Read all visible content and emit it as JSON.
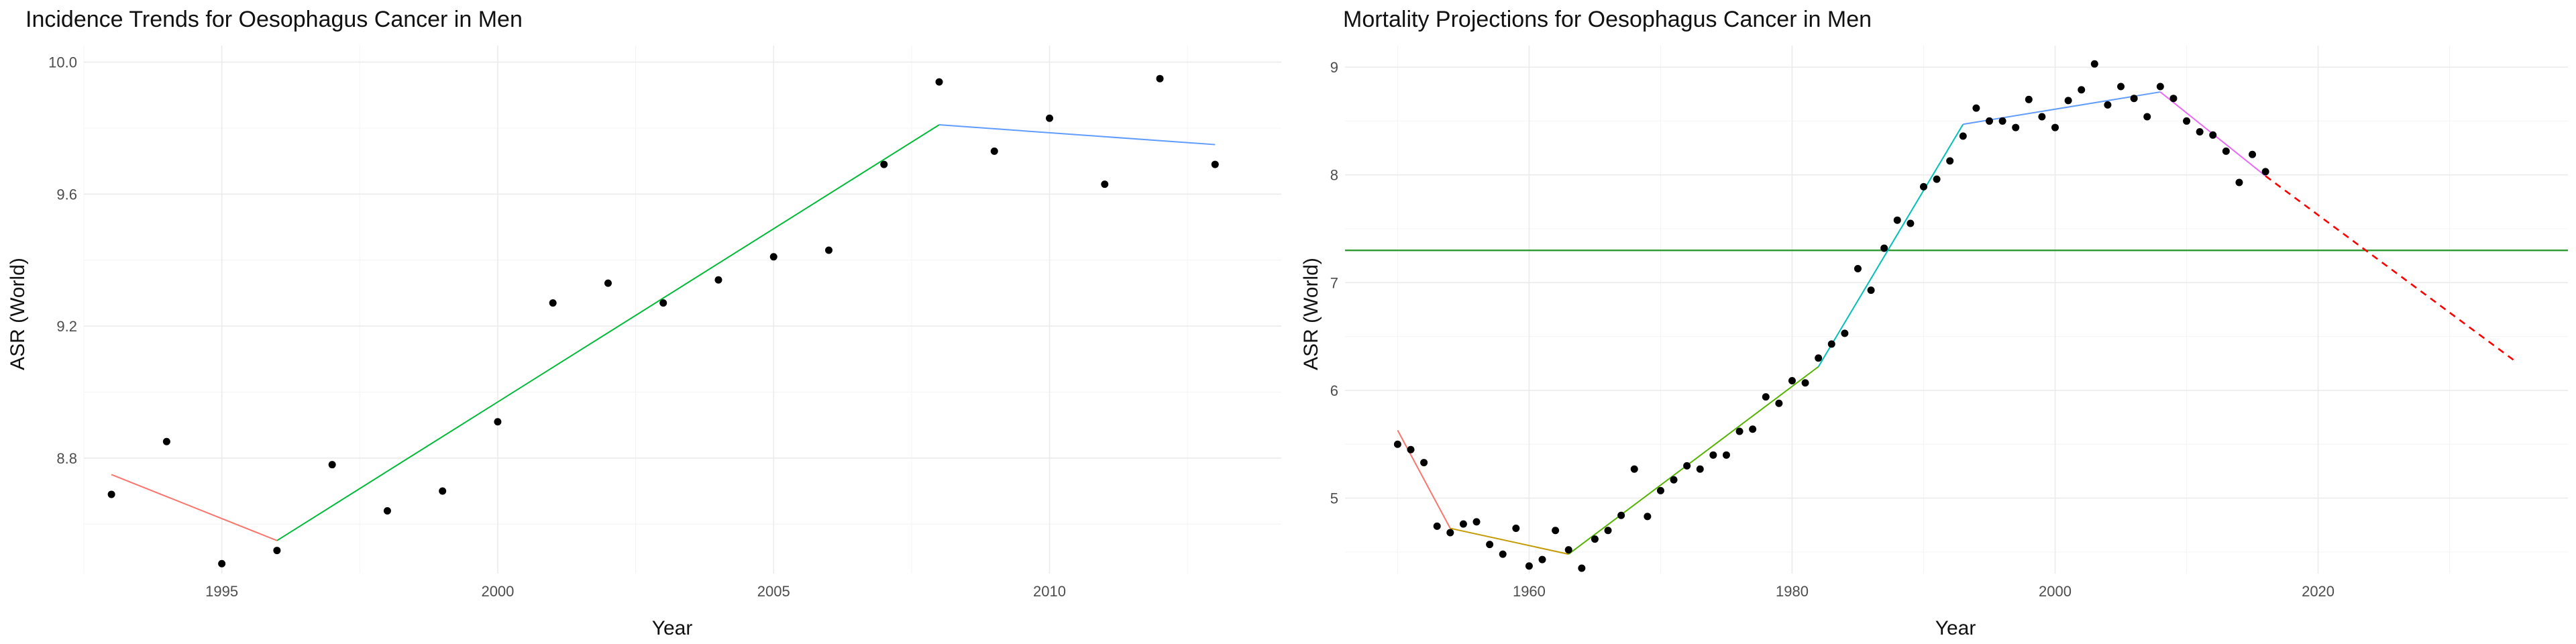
{
  "chart_data": [
    {
      "type": "scatter",
      "title": "Incidence Trends for Oesophagus Cancer in Men",
      "xlabel": "Year",
      "ylabel": "ASR (World)",
      "xlim": [
        1992.5,
        2014.2
      ],
      "ylim": [
        8.45,
        10.05
      ],
      "x_ticks": [
        1995,
        2000,
        2005,
        2010
      ],
      "y_ticks": [
        8.8,
        9.2,
        9.6,
        10.0
      ],
      "y_tick_labels": [
        "8.8",
        "9.2",
        "9.6",
        "10.0"
      ],
      "grid": true,
      "points": [
        [
          1993,
          8.69
        ],
        [
          1994,
          8.85
        ],
        [
          1995,
          8.48
        ],
        [
          1996,
          8.52
        ],
        [
          1997,
          8.78
        ],
        [
          1998,
          8.64
        ],
        [
          1999,
          8.7
        ],
        [
          2000,
          8.91
        ],
        [
          2001,
          9.27
        ],
        [
          2002,
          9.33
        ],
        [
          2003,
          9.27
        ],
        [
          2004,
          9.34
        ],
        [
          2005,
          9.41
        ],
        [
          2006,
          9.43
        ],
        [
          2007,
          9.69
        ],
        [
          2008,
          9.94
        ],
        [
          2009,
          9.73
        ],
        [
          2010,
          9.83
        ],
        [
          2011,
          9.63
        ],
        [
          2012,
          9.95
        ],
        [
          2013,
          9.69
        ]
      ],
      "trend_segments": [
        {
          "color": "#F8766D",
          "points": [
            [
              1993,
              8.75
            ],
            [
              1996,
              8.55
            ]
          ]
        },
        {
          "color": "#00BA38",
          "points": [
            [
              1996,
              8.55
            ],
            [
              2008,
              9.81
            ]
          ]
        },
        {
          "color": "#619CFF",
          "points": [
            [
              2008,
              9.81
            ],
            [
              2013,
              9.75
            ]
          ]
        }
      ]
    },
    {
      "type": "scatter",
      "title": "Mortality Projections for Oesophagus Cancer in Men",
      "xlabel": "Year",
      "ylabel": "ASR (World)",
      "xlim": [
        1946,
        2039
      ],
      "ylim": [
        4.3,
        9.2
      ],
      "x_ticks": [
        1960,
        1980,
        2000,
        2020
      ],
      "y_ticks": [
        5,
        6,
        7,
        8,
        9
      ],
      "y_tick_labels": [
        "5",
        "6",
        "7",
        "8",
        "9"
      ],
      "grid": true,
      "reference_line": {
        "y": 7.3,
        "color": "#2E9A2E"
      },
      "points": [
        [
          1950,
          5.5
        ],
        [
          1951,
          5.45
        ],
        [
          1952,
          5.33
        ],
        [
          1953,
          4.74
        ],
        [
          1954,
          4.68
        ],
        [
          1955,
          4.76
        ],
        [
          1956,
          4.78
        ],
        [
          1957,
          4.57
        ],
        [
          1958,
          4.48
        ],
        [
          1959,
          4.72
        ],
        [
          1960,
          4.37
        ],
        [
          1961,
          4.43
        ],
        [
          1962,
          4.7
        ],
        [
          1963,
          4.52
        ],
        [
          1964,
          4.35
        ],
        [
          1965,
          4.62
        ],
        [
          1966,
          4.7
        ],
        [
          1967,
          4.84
        ],
        [
          1968,
          5.27
        ],
        [
          1969,
          4.83
        ],
        [
          1970,
          5.07
        ],
        [
          1971,
          5.17
        ],
        [
          1972,
          5.3
        ],
        [
          1973,
          5.27
        ],
        [
          1974,
          5.4
        ],
        [
          1975,
          5.4
        ],
        [
          1976,
          5.62
        ],
        [
          1977,
          5.64
        ],
        [
          1978,
          5.94
        ],
        [
          1979,
          5.88
        ],
        [
          1980,
          6.09
        ],
        [
          1981,
          6.07
        ],
        [
          1982,
          6.3
        ],
        [
          1983,
          6.43
        ],
        [
          1984,
          6.53
        ],
        [
          1985,
          7.13
        ],
        [
          1986,
          6.93
        ],
        [
          1987,
          7.32
        ],
        [
          1988,
          7.58
        ],
        [
          1989,
          7.55
        ],
        [
          1990,
          7.89
        ],
        [
          1991,
          7.96
        ],
        [
          1992,
          8.13
        ],
        [
          1993,
          8.36
        ],
        [
          1994,
          8.62
        ],
        [
          1995,
          8.5
        ],
        [
          1996,
          8.5
        ],
        [
          1997,
          8.44
        ],
        [
          1998,
          8.7
        ],
        [
          1999,
          8.54
        ],
        [
          2000,
          8.44
        ],
        [
          2001,
          8.69
        ],
        [
          2002,
          8.79
        ],
        [
          2003,
          9.03
        ],
        [
          2004,
          8.65
        ],
        [
          2005,
          8.82
        ],
        [
          2006,
          8.71
        ],
        [
          2007,
          8.54
        ],
        [
          2008,
          8.82
        ],
        [
          2009,
          8.71
        ],
        [
          2010,
          8.5
        ],
        [
          2011,
          8.4
        ],
        [
          2012,
          8.37
        ],
        [
          2013,
          8.22
        ],
        [
          2014,
          7.93
        ],
        [
          2015,
          8.19
        ],
        [
          2016,
          8.03
        ]
      ],
      "trend_segments": [
        {
          "color": "#F8766D",
          "points": [
            [
              1950,
              5.63
            ],
            [
              1954,
              4.72
            ]
          ]
        },
        {
          "color": "#C49A00",
          "points": [
            [
              1954,
              4.72
            ],
            [
              1963,
              4.48
            ]
          ]
        },
        {
          "color": "#53B400",
          "points": [
            [
              1963,
              4.48
            ],
            [
              1982,
              6.22
            ]
          ]
        },
        {
          "color": "#00C0B8",
          "points": [
            [
              1982,
              6.22
            ],
            [
              1993,
              8.47
            ]
          ]
        },
        {
          "color": "#619CFF",
          "points": [
            [
              1993,
              8.47
            ],
            [
              2008,
              8.77
            ]
          ]
        },
        {
          "color": "#E76BF3",
          "points": [
            [
              2008,
              8.77
            ],
            [
              2016,
              7.99
            ]
          ]
        }
      ],
      "projection": {
        "color": "#FF0000",
        "dashed": true,
        "points": [
          [
            2016,
            7.99
          ],
          [
            2035,
            6.27
          ]
        ]
      }
    }
  ]
}
